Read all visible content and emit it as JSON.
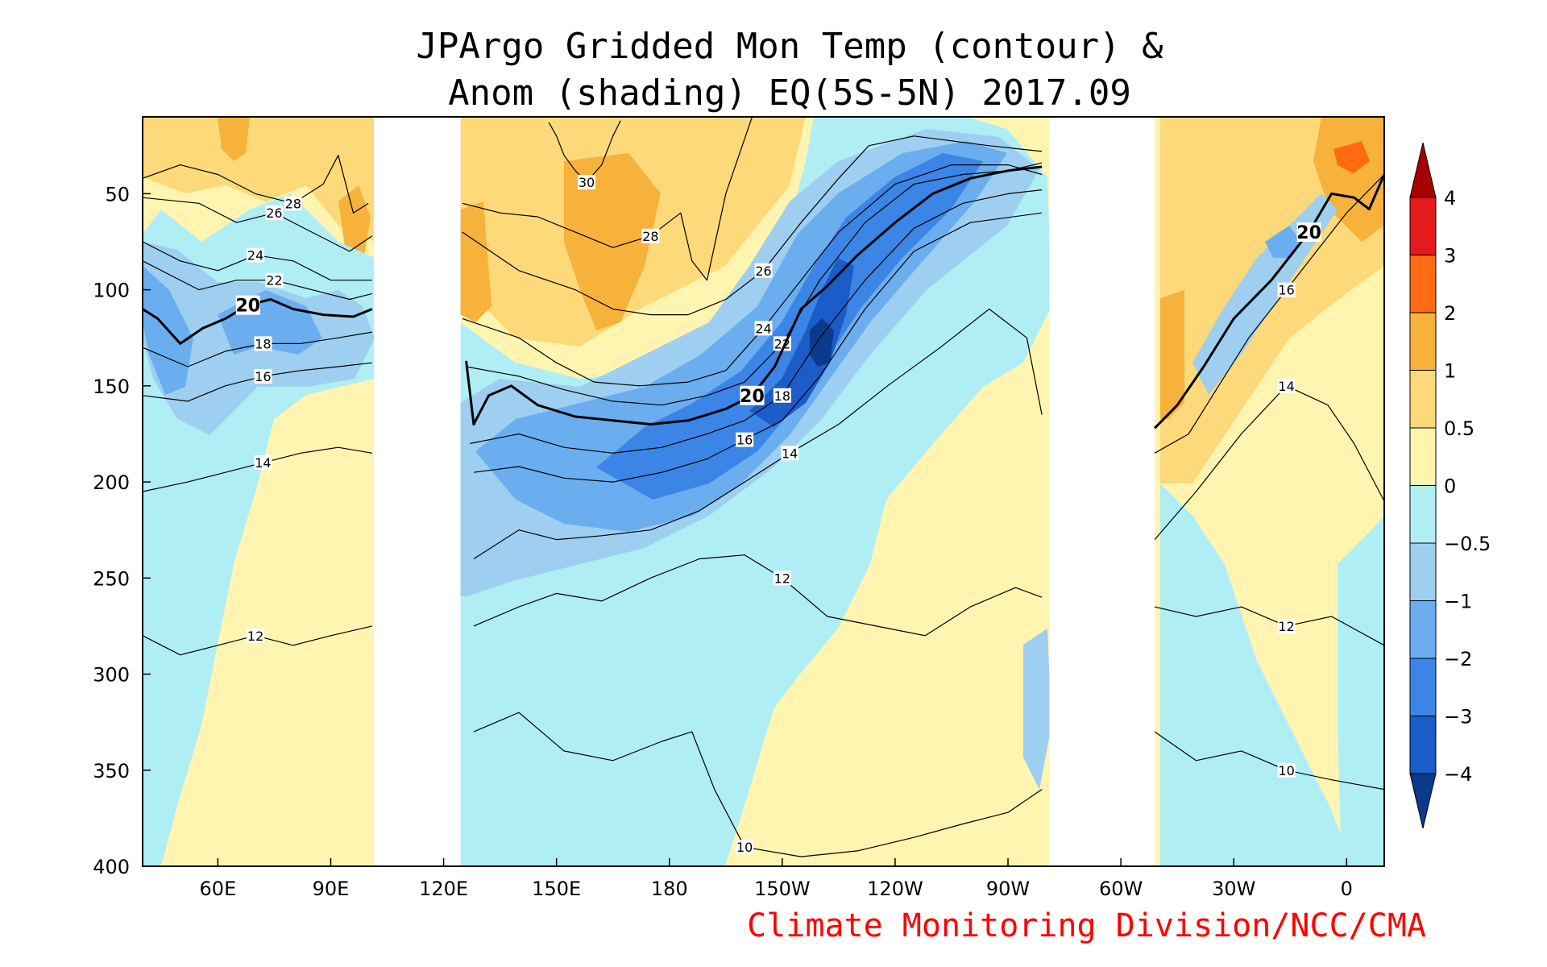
{
  "title": {
    "line1": "JPArgo Gridded Mon Temp (contour) &",
    "line2": "Anom (shading) EQ(5S-5N) 2017.09"
  },
  "credit": "Climate Monitoring Division/NCC/CMA",
  "chart_data": {
    "type": "heatmap",
    "x_axis": {
      "ticks": [
        "60E",
        "90E",
        "120E",
        "150E",
        "180",
        "150W",
        "120W",
        "90W",
        "60W",
        "30W",
        "0"
      ],
      "tick_values": [
        60,
        90,
        120,
        150,
        180,
        210,
        240,
        270,
        300,
        330,
        360
      ],
      "range": [
        40,
        370
      ]
    },
    "y_axis": {
      "ticks": [
        "50",
        "100",
        "150",
        "200",
        "250",
        "300",
        "350",
        "400"
      ],
      "tick_values": [
        50,
        100,
        150,
        200,
        250,
        300,
        350,
        400
      ],
      "range": [
        10,
        400
      ],
      "reversed": true
    },
    "land_gaps": [
      [
        101.5,
        124.5
      ],
      [
        281,
        309
      ]
    ],
    "colorbar": {
      "levels": [
        "4",
        "3",
        "2",
        "1",
        "0.5",
        "0",
        "−0.5",
        "−1",
        "−2",
        "−3",
        "−4"
      ],
      "colors_top_to_bottom": [
        "#a80000",
        "#e41a1c",
        "#ff6a13",
        "#f6b23a",
        "#fdd97a",
        "#fff5b0",
        "#b0eef6",
        "#9ecff0",
        "#6aaeef",
        "#3a85e6",
        "#1a5cc8",
        "#0a3a8c"
      ]
    },
    "contours": [
      {
        "label": "30",
        "points": [
          [
            148,
            13
          ],
          [
            150,
            20
          ],
          [
            152,
            30
          ],
          [
            155,
            38
          ],
          [
            158,
            44
          ],
          [
            162,
            35
          ],
          [
            165,
            20
          ],
          [
            167,
            12
          ]
        ]
      },
      {
        "label": "28",
        "points": [
          [
            40,
            42
          ],
          [
            50,
            35
          ],
          [
            60,
            40
          ],
          [
            70,
            50
          ],
          [
            80,
            55
          ],
          [
            88,
            45
          ],
          [
            92,
            30
          ],
          [
            96,
            60
          ],
          [
            100,
            55
          ]
        ]
      },
      {
        "label": "28",
        "points": [
          [
            125,
            55
          ],
          [
            135,
            60
          ],
          [
            145,
            62
          ],
          [
            155,
            70
          ],
          [
            165,
            78
          ],
          [
            175,
            72
          ],
          [
            183,
            60
          ],
          [
            186,
            85
          ],
          [
            190,
            95
          ],
          [
            195,
            50
          ],
          [
            202,
            10
          ]
        ]
      },
      {
        "label": "26",
        "points": [
          [
            40,
            52
          ],
          [
            55,
            55
          ],
          [
            65,
            65
          ],
          [
            75,
            60
          ],
          [
            85,
            70
          ],
          [
            95,
            80
          ],
          [
            101,
            72
          ]
        ]
      },
      {
        "label": "26",
        "points": [
          [
            125,
            70
          ],
          [
            140,
            90
          ],
          [
            155,
            100
          ],
          [
            165,
            110
          ],
          [
            175,
            113
          ],
          [
            185,
            113
          ],
          [
            195,
            105
          ],
          [
            205,
            90
          ],
          [
            215,
            65
          ],
          [
            225,
            42
          ],
          [
            233,
            25
          ],
          [
            245,
            20
          ],
          [
            265,
            25
          ],
          [
            279,
            28
          ]
        ]
      },
      {
        "label": "24",
        "points": [
          [
            40,
            75
          ],
          [
            50,
            85
          ],
          [
            60,
            90
          ],
          [
            70,
            82
          ],
          [
            80,
            85
          ],
          [
            90,
            95
          ],
          [
            101,
            95
          ]
        ]
      },
      {
        "label": "24",
        "points": [
          [
            125,
            115
          ],
          [
            140,
            125
          ],
          [
            150,
            138
          ],
          [
            160,
            148
          ],
          [
            172,
            150
          ],
          [
            185,
            148
          ],
          [
            195,
            142
          ],
          [
            205,
            120
          ],
          [
            215,
            95
          ],
          [
            225,
            70
          ],
          [
            240,
            45
          ],
          [
            255,
            35
          ],
          [
            270,
            35
          ],
          [
            279,
            40
          ]
        ]
      },
      {
        "label": "22",
        "points": [
          [
            40,
            85
          ],
          [
            55,
            100
          ],
          [
            65,
            95
          ],
          [
            75,
            95
          ],
          [
            85,
            100
          ],
          [
            95,
            105
          ],
          [
            101,
            102
          ]
        ]
      },
      {
        "label": "22",
        "points": [
          [
            126,
            140
          ],
          [
            140,
            145
          ],
          [
            152,
            152
          ],
          [
            165,
            158
          ],
          [
            178,
            160
          ],
          [
            190,
            155
          ],
          [
            200,
            148
          ],
          [
            210,
            128
          ],
          [
            220,
            95
          ],
          [
            232,
            65
          ],
          [
            245,
            45
          ],
          [
            258,
            40
          ],
          [
            270,
            38
          ],
          [
            279,
            34
          ]
        ]
      },
      {
        "label": "20",
        "bold": true,
        "points": [
          [
            40,
            110
          ],
          [
            44,
            115
          ],
          [
            50,
            128
          ],
          [
            56,
            120
          ],
          [
            62,
            115
          ],
          [
            68,
            108
          ],
          [
            74,
            105
          ],
          [
            80,
            110
          ],
          [
            88,
            113
          ],
          [
            96,
            114
          ],
          [
            101,
            110
          ]
        ]
      },
      {
        "label": "20",
        "bold": true,
        "points": [
          [
            126,
            137
          ],
          [
            128,
            170
          ],
          [
            132,
            155
          ],
          [
            138,
            150
          ],
          [
            145,
            160
          ],
          [
            155,
            166
          ],
          [
            165,
            168
          ],
          [
            175,
            170
          ],
          [
            185,
            168
          ],
          [
            195,
            162
          ],
          [
            202,
            155
          ],
          [
            208,
            140
          ],
          [
            215,
            110
          ],
          [
            222,
            98
          ],
          [
            230,
            82
          ],
          [
            240,
            65
          ],
          [
            250,
            50
          ],
          [
            260,
            42
          ],
          [
            270,
            38
          ],
          [
            279,
            36
          ]
        ]
      },
      {
        "label": "20",
        "bold": true,
        "points": [
          [
            309,
            172
          ],
          [
            315,
            160
          ],
          [
            322,
            140
          ],
          [
            330,
            115
          ],
          [
            340,
            95
          ],
          [
            350,
            70
          ],
          [
            356,
            50
          ],
          [
            362,
            52
          ],
          [
            366,
            58
          ],
          [
            370,
            40
          ]
        ]
      },
      {
        "label": "18",
        "points": [
          [
            40,
            130
          ],
          [
            52,
            140
          ],
          [
            62,
            132
          ],
          [
            72,
            128
          ],
          [
            82,
            128
          ],
          [
            92,
            125
          ],
          [
            101,
            122
          ]
        ]
      },
      {
        "label": "18",
        "points": [
          [
            127,
            180
          ],
          [
            140,
            175
          ],
          [
            152,
            182
          ],
          [
            165,
            185
          ],
          [
            178,
            182
          ],
          [
            190,
            175
          ],
          [
            200,
            168
          ],
          [
            210,
            155
          ],
          [
            220,
            125
          ],
          [
            232,
            95
          ],
          [
            245,
            68
          ],
          [
            258,
            55
          ],
          [
            270,
            50
          ],
          [
            279,
            48
          ]
        ]
      },
      {
        "label": "16",
        "points": [
          [
            40,
            155
          ],
          [
            52,
            158
          ],
          [
            62,
            150
          ],
          [
            72,
            145
          ],
          [
            82,
            142
          ],
          [
            92,
            140
          ],
          [
            101,
            138
          ]
        ]
      },
      {
        "label": "16",
        "points": [
          [
            128,
            195
          ],
          [
            140,
            192
          ],
          [
            152,
            198
          ],
          [
            165,
            200
          ],
          [
            178,
            195
          ],
          [
            190,
            188
          ],
          [
            200,
            178
          ],
          [
            210,
            168
          ],
          [
            220,
            145
          ],
          [
            232,
            110
          ],
          [
            245,
            80
          ],
          [
            260,
            65
          ],
          [
            279,
            60
          ]
        ]
      },
      {
        "label": "16",
        "points": [
          [
            309,
            185
          ],
          [
            318,
            175
          ],
          [
            326,
            150
          ],
          [
            334,
            125
          ],
          [
            344,
            100
          ],
          [
            352,
            80
          ],
          [
            360,
            60
          ],
          [
            370,
            40
          ]
        ]
      },
      {
        "label": "14",
        "points": [
          [
            40,
            205
          ],
          [
            52,
            200
          ],
          [
            62,
            195
          ],
          [
            72,
            190
          ],
          [
            82,
            185
          ],
          [
            92,
            182
          ],
          [
            101,
            185
          ]
        ]
      },
      {
        "label": "14",
        "points": [
          [
            128,
            240
          ],
          [
            140,
            225
          ],
          [
            150,
            230
          ],
          [
            162,
            228
          ],
          [
            175,
            225
          ],
          [
            188,
            215
          ],
          [
            200,
            200
          ],
          [
            212,
            185
          ],
          [
            225,
            170
          ],
          [
            238,
            150
          ],
          [
            252,
            130
          ],
          [
            265,
            110
          ],
          [
            275,
            125
          ],
          [
            279,
            165
          ]
        ]
      },
      {
        "label": "14",
        "points": [
          [
            309,
            230
          ],
          [
            320,
            205
          ],
          [
            332,
            175
          ],
          [
            344,
            150
          ],
          [
            355,
            160
          ],
          [
            362,
            180
          ],
          [
            370,
            210
          ]
        ]
      },
      {
        "label": "12",
        "points": [
          [
            40,
            280
          ],
          [
            50,
            290
          ],
          [
            60,
            285
          ],
          [
            70,
            280
          ],
          [
            80,
            285
          ],
          [
            90,
            280
          ],
          [
            101,
            275
          ]
        ]
      },
      {
        "label": "12",
        "points": [
          [
            128,
            275
          ],
          [
            140,
            265
          ],
          [
            150,
            258
          ],
          [
            162,
            262
          ],
          [
            175,
            250
          ],
          [
            188,
            240
          ],
          [
            200,
            238
          ],
          [
            210,
            250
          ],
          [
            222,
            270
          ],
          [
            235,
            275
          ],
          [
            248,
            280
          ],
          [
            260,
            265
          ],
          [
            272,
            255
          ],
          [
            279,
            260
          ]
        ]
      },
      {
        "label": "12",
        "points": [
          [
            309,
            265
          ],
          [
            320,
            270
          ],
          [
            332,
            265
          ],
          [
            344,
            275
          ],
          [
            356,
            270
          ],
          [
            370,
            285
          ]
        ]
      },
      {
        "label": "10",
        "points": [
          [
            128,
            330
          ],
          [
            140,
            320
          ],
          [
            152,
            340
          ],
          [
            165,
            345
          ],
          [
            178,
            335
          ],
          [
            186,
            330
          ],
          [
            192,
            360
          ],
          [
            200,
            390
          ],
          [
            215,
            395
          ],
          [
            230,
            392
          ],
          [
            245,
            385
          ],
          [
            258,
            378
          ],
          [
            270,
            372
          ],
          [
            279,
            360
          ]
        ]
      },
      {
        "label": "10",
        "points": [
          [
            309,
            330
          ],
          [
            320,
            345
          ],
          [
            332,
            340
          ],
          [
            344,
            350
          ],
          [
            356,
            355
          ],
          [
            370,
            360
          ]
        ]
      }
    ]
  }
}
